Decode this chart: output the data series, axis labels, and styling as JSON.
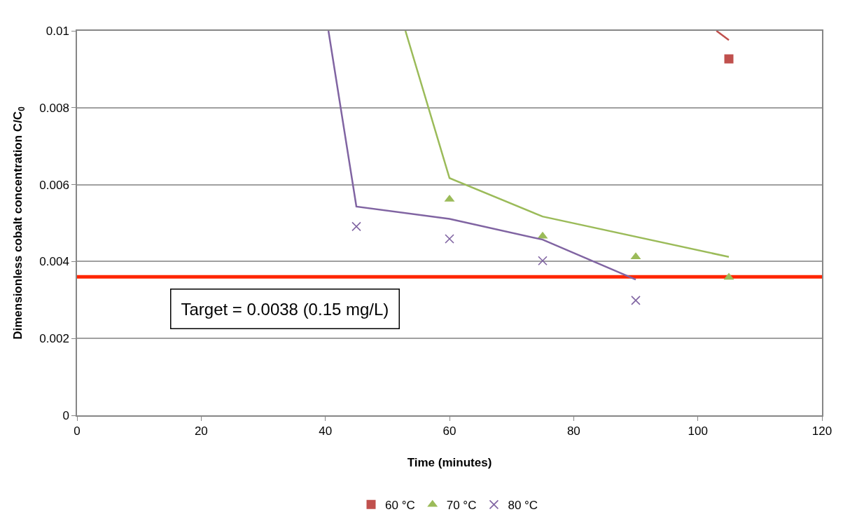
{
  "chart_data": {
    "type": "scatter",
    "xlabel": "Time (minutes)",
    "ylabel": "Dimensionless cobalt concentration C/C$_{0}$",
    "xlim": [
      0,
      120
    ],
    "xticks": [
      0,
      20,
      40,
      60,
      80,
      100,
      120
    ],
    "ylim": [
      0,
      0.01
    ],
    "yticks": [
      0,
      0.002,
      0.004,
      0.006,
      0.008,
      0.01
    ],
    "grid": "y",
    "legend": "bottom",
    "series": [
      {
        "name": "60 °C",
        "marker": "square",
        "color": "#c0504d",
        "x": [
          105
        ],
        "values": [
          0.00927
        ]
      },
      {
        "name": "70 °C",
        "marker": "triangle",
        "color": "#9bbb59",
        "x": [
          60,
          75,
          90,
          105
        ],
        "values": [
          0.00562,
          0.00466,
          0.00412,
          0.00359
        ]
      },
      {
        "name": "80 °C",
        "marker": "cross",
        "color": "#8064a2",
        "x": [
          45,
          60,
          75,
          90
        ],
        "values": [
          0.00491,
          0.00459,
          0.00402,
          0.00299
        ]
      },
      {
        "type": "line",
        "color": "#c0504d",
        "x": [
          103,
          105
        ],
        "values": [
          0.01,
          0.00976
        ]
      },
      {
        "type": "line",
        "color": "#9bbb59",
        "x": [
          52.9,
          60,
          75,
          105
        ],
        "values": [
          0.01,
          0.00617,
          0.00517,
          0.00412
        ]
      },
      {
        "type": "line",
        "color": "#8064a2",
        "x": [
          40.5,
          45,
          60,
          75,
          90
        ],
        "values": [
          0.01,
          0.00543,
          0.00511,
          0.00457,
          0.00353
        ]
      }
    ],
    "ref_lines": [
      {
        "axis": "y",
        "value": 0.0036,
        "color": "#ff2600"
      }
    ],
    "annotations": [
      "Target = 0.0038 (0.15 mg/L)"
    ]
  }
}
